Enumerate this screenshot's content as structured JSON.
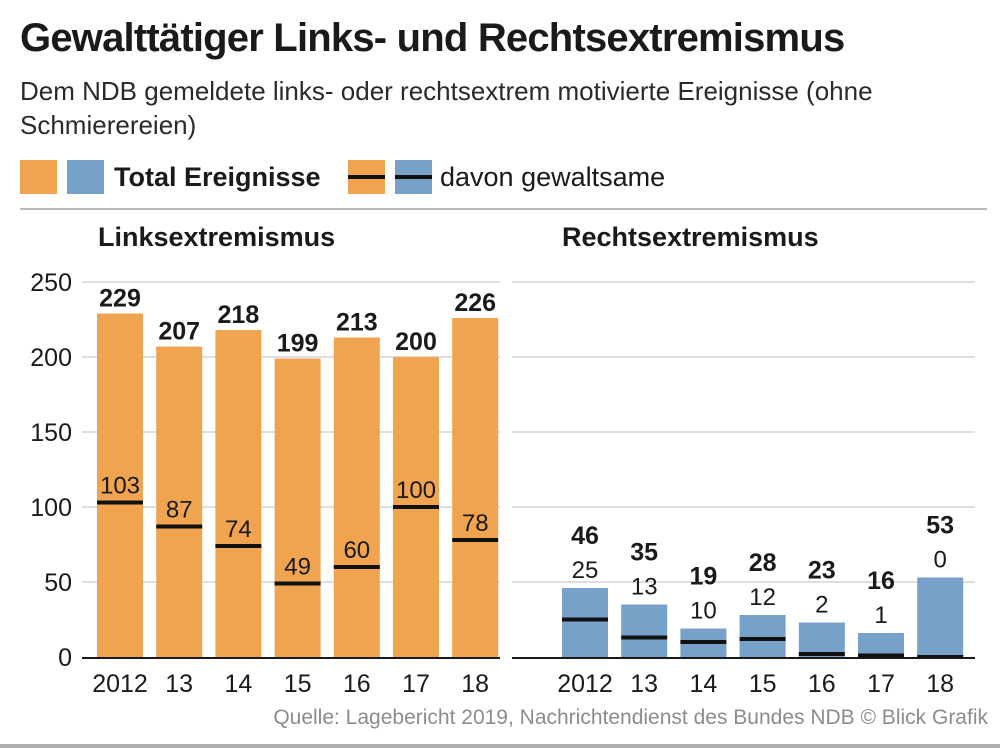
{
  "title": "Gewalttätiger Links- und Rechtsextremismus",
  "subtitle": "Dem NDB gemeldete links- oder rechtsextrem motivierte Ereignisse (ohne Schmierereien)",
  "legend": {
    "total_label": "Total Ereignisse",
    "violent_label": "davon gewaltsame"
  },
  "colors": {
    "left_bar": "#f0a450",
    "right_bar": "#77a1c9",
    "violent_line": "#111111",
    "grid": "#bdbdbd"
  },
  "source": "Quelle: Lagebericht 2019, Nachrichtendienst des Bundes NDB © Blick Grafik",
  "chart_data": [
    {
      "type": "bar",
      "title": "Linksextremismus",
      "categories": [
        "2012",
        "13",
        "14",
        "15",
        "16",
        "17",
        "18"
      ],
      "series": [
        {
          "name": "Total Ereignisse",
          "values": [
            229,
            207,
            218,
            199,
            213,
            200,
            226
          ]
        },
        {
          "name": "davon gewaltsame",
          "values": [
            103,
            87,
            74,
            49,
            60,
            100,
            78
          ]
        }
      ],
      "ylim": [
        0,
        250
      ],
      "yticks": [
        0,
        50,
        100,
        150,
        200,
        250
      ],
      "xlabel": "",
      "ylabel": "",
      "grid": true
    },
    {
      "type": "bar",
      "title": "Rechtsextremismus",
      "categories": [
        "2012",
        "13",
        "14",
        "15",
        "16",
        "17",
        "18"
      ],
      "series": [
        {
          "name": "Total Ereignisse",
          "values": [
            46,
            35,
            19,
            28,
            23,
            16,
            53
          ]
        },
        {
          "name": "davon gewaltsame",
          "values": [
            25,
            13,
            10,
            12,
            2,
            1,
            0
          ]
        }
      ],
      "ylim": [
        0,
        250
      ],
      "xlabel": "",
      "ylabel": "",
      "grid": true
    }
  ]
}
